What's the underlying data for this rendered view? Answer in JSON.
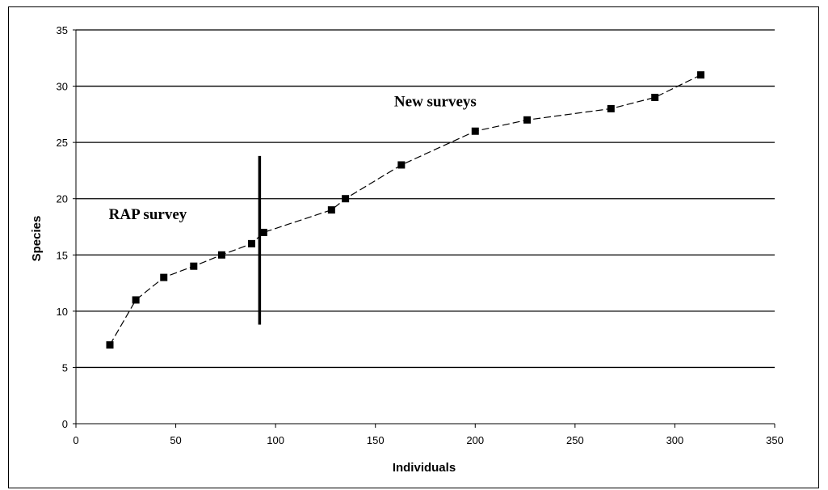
{
  "chart_data": {
    "type": "scatter",
    "title": "",
    "xlabel": "Individuals",
    "ylabel": "Species",
    "xlim": [
      0,
      350
    ],
    "ylim": [
      0,
      35
    ],
    "xticks": [
      "0",
      "50",
      "100",
      "150",
      "200",
      "250",
      "300",
      "350"
    ],
    "yticks": [
      "0",
      "5",
      "10",
      "15",
      "20",
      "25",
      "30",
      "35"
    ],
    "grid": "horizontal",
    "line_style": "dashed",
    "marker": "square",
    "series": [
      {
        "x": [
          17,
          30,
          44,
          59,
          73,
          88,
          94,
          128,
          135,
          163,
          200,
          226,
          268,
          290,
          313
        ],
        "y": [
          7,
          11,
          13,
          14,
          15,
          16,
          17,
          19,
          20,
          23,
          26,
          27,
          28,
          29,
          31
        ]
      }
    ],
    "divider": {
      "x": 92,
      "y_range": [
        8.8,
        23.8
      ]
    },
    "annotations": [
      {
        "text": "New surveys",
        "x": 180,
        "y": 28.2
      },
      {
        "text": "RAP survey",
        "x": 36,
        "y": 18.2
      }
    ],
    "colors": {
      "line": "#000000",
      "marker": "#000000",
      "grid": "#000000"
    }
  }
}
